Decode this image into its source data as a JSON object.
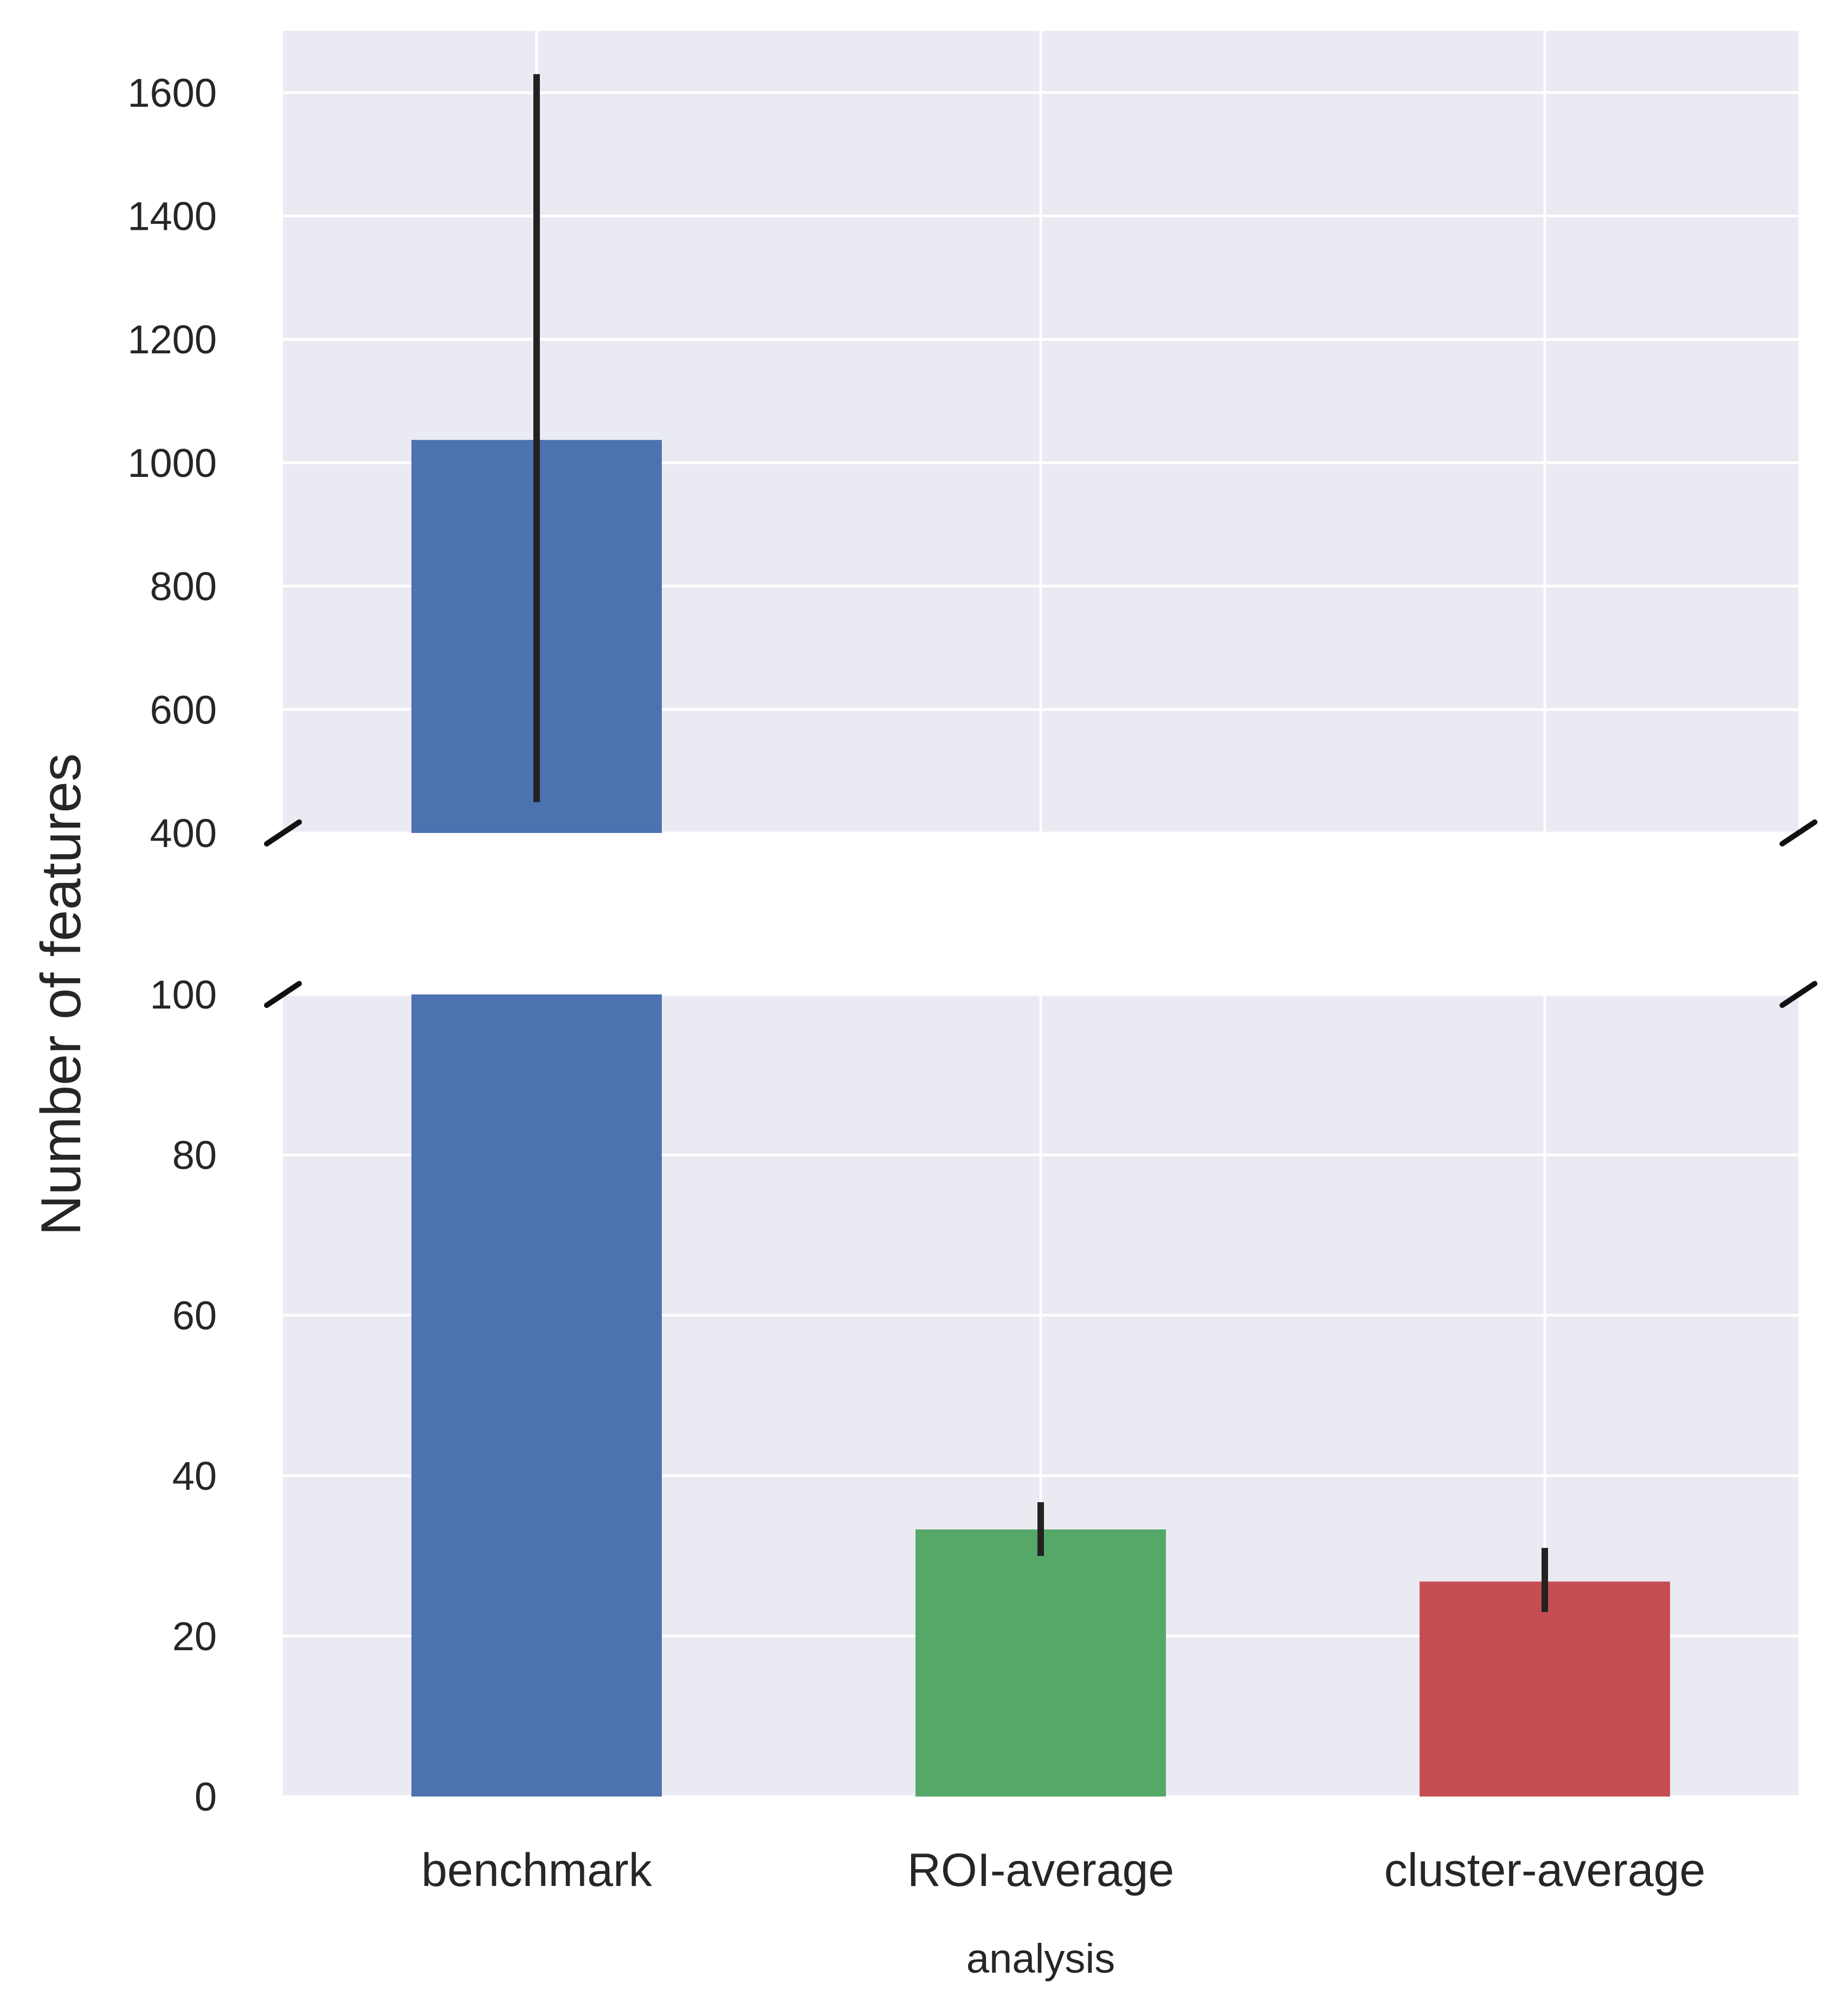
{
  "chart_data": {
    "type": "bar",
    "broken_axis": true,
    "categories": [
      "benchmark",
      "ROI-average",
      "cluster-average"
    ],
    "values": [
      1037,
      33.3,
      26.8
    ],
    "error_low": [
      450,
      30.0,
      23.0
    ],
    "error_high": [
      1630,
      36.7,
      31.0
    ],
    "colors": [
      "#4c72b0",
      "#55a868",
      "#c44e52"
    ],
    "xlabel": "analysis",
    "ylabel": "Number of features",
    "upper_panel": {
      "ylim": [
        400,
        1700
      ],
      "ticks": [
        "400",
        "600",
        "800",
        "1000",
        "1200",
        "1400",
        "1600"
      ]
    },
    "lower_panel": {
      "ylim": [
        0,
        100
      ],
      "ticks": [
        "0",
        "20",
        "40",
        "60",
        "80",
        "100"
      ]
    },
    "grid": true,
    "background": "#eaeaf2",
    "error_color": "#222222"
  }
}
